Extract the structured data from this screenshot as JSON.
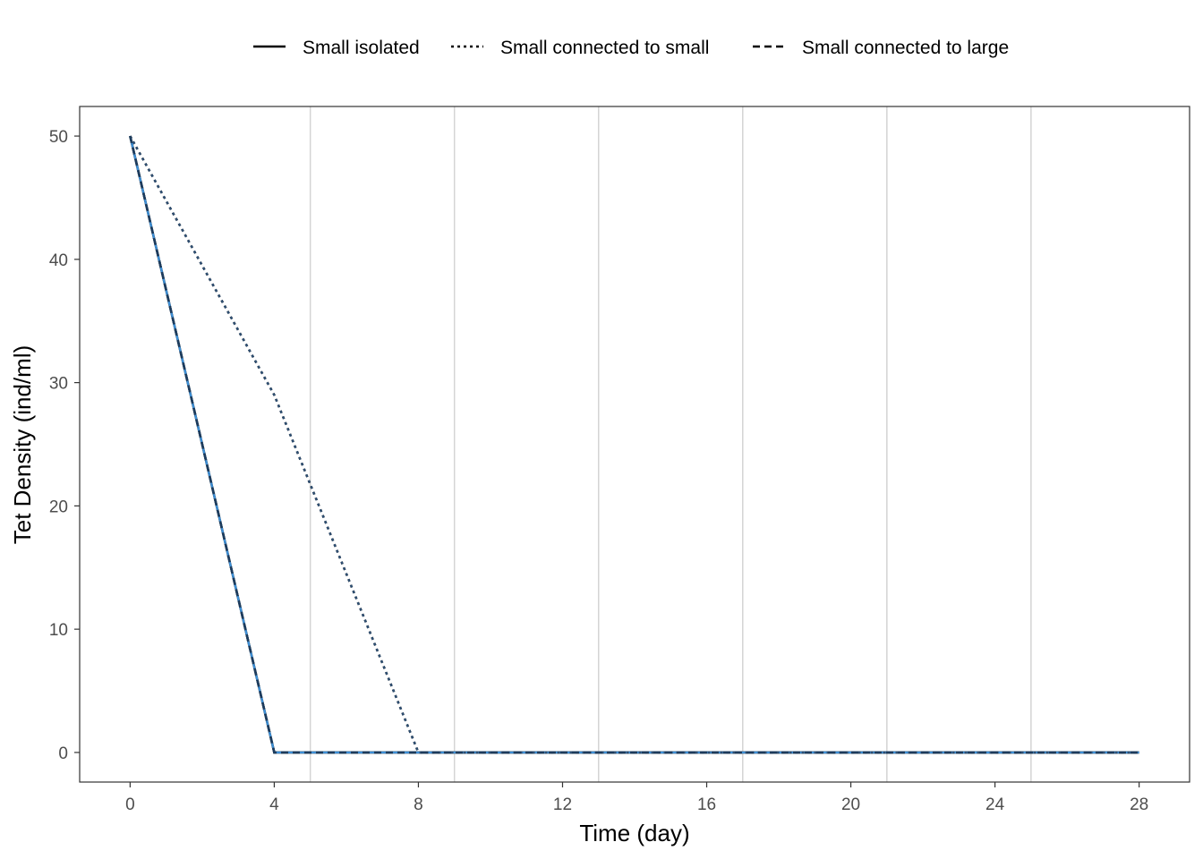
{
  "chart_data": {
    "type": "line",
    "xlabel": "Time (day)",
    "ylabel": "Tet Density (ind/ml)",
    "xlim": [
      -1.4,
      29.4
    ],
    "ylim": [
      -2.4,
      52.4
    ],
    "x_ticks": [
      0,
      4,
      8,
      12,
      16,
      20,
      24,
      28
    ],
    "x_tick_labels": [
      "0",
      "4",
      "8",
      "12",
      "16",
      "20",
      "24",
      "28"
    ],
    "y_ticks": [
      0,
      10,
      20,
      30,
      40,
      50
    ],
    "y_tick_labels": [
      "0",
      "10",
      "20",
      "30",
      "40",
      "50"
    ],
    "vertical_reference_lines": [
      5,
      9,
      13,
      17,
      21,
      25
    ],
    "grid": false,
    "legend_position": "top",
    "series": [
      {
        "name": "Small isolated",
        "linetype": "solid",
        "color": "#000000",
        "x": [
          0,
          4,
          8,
          12,
          16,
          20,
          24,
          28
        ],
        "y": [
          50,
          0,
          0,
          0,
          0,
          0,
          0,
          0
        ]
      },
      {
        "name": "Small connected to small",
        "linetype": "dotted",
        "color": "#000000",
        "x": [
          0,
          4,
          8,
          12,
          16,
          20,
          24,
          28
        ],
        "y": [
          50,
          29,
          0,
          0,
          0,
          0,
          0,
          0
        ]
      },
      {
        "name": "Small connected to large",
        "linetype": "dashed",
        "color": "#000000",
        "x": [
          0,
          4,
          8,
          12,
          16,
          20,
          24,
          28
        ],
        "y": [
          50,
          0,
          0,
          0,
          0,
          0,
          0,
          0
        ]
      }
    ],
    "colored_lines": [
      {
        "color": "#3d8fd6",
        "linetype": "solid",
        "x": [
          0,
          4,
          8,
          12,
          16,
          20,
          24,
          28
        ],
        "y": [
          50,
          0,
          0,
          0,
          0,
          0,
          0,
          0
        ]
      },
      {
        "color": "#2e4f73",
        "linetype": "dotted",
        "x": [
          0,
          4,
          8,
          12,
          16,
          20,
          24,
          28
        ],
        "y": [
          50,
          29,
          0,
          0,
          0,
          0,
          0,
          0
        ]
      },
      {
        "color": "#1d3b5c",
        "linetype": "dashed",
        "x": [
          0,
          4,
          8,
          12,
          16,
          20,
          24,
          28
        ],
        "y": [
          50,
          0,
          0,
          0,
          0,
          0,
          0,
          0
        ]
      }
    ]
  }
}
